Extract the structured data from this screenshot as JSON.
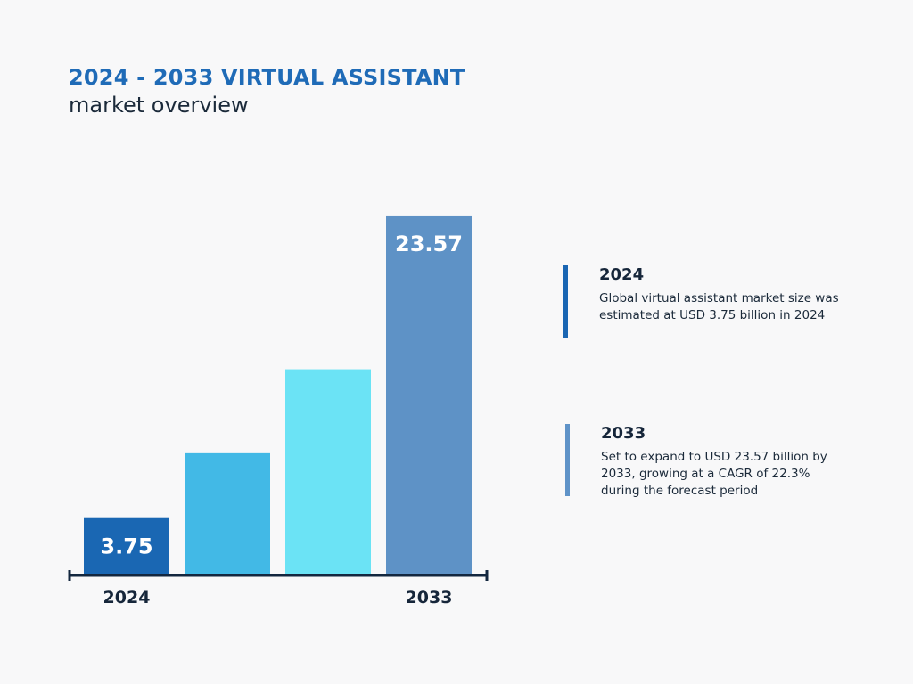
{
  "header": {
    "title": "2024 - 2033 VIRTUAL ASSISTANT",
    "subtitle": "market overview"
  },
  "chart_data": {
    "type": "bar",
    "categories": [
      "2024",
      "",
      "",
      "2033"
    ],
    "values": [
      3.75,
      8.0,
      13.5,
      23.57
    ],
    "data_labels": [
      "3.75",
      "",
      "",
      "23.57"
    ],
    "tick_labels": [
      "2024",
      "2033"
    ],
    "bar_colors": [
      "#1a67b3",
      "#42b9e6",
      "#6be3f5",
      "#5e92c6"
    ],
    "axis_color": "#13273f",
    "ylim": [
      0,
      26.6
    ],
    "grid": false,
    "title": "2024 - 2033 VIRTUAL ASSISTANT",
    "subtitle": "market overview"
  },
  "notes": [
    {
      "year": "2024",
      "text": "Global virtual assistant market size was estimated at USD 3.75 billion in 2024",
      "accent": "#1a66b3"
    },
    {
      "year": "2033",
      "text": "Set to expand to USD 23.57 billion by 2033, growing at a CAGR of 22.3% during the forecast period",
      "accent": "#5f93c8"
    }
  ]
}
